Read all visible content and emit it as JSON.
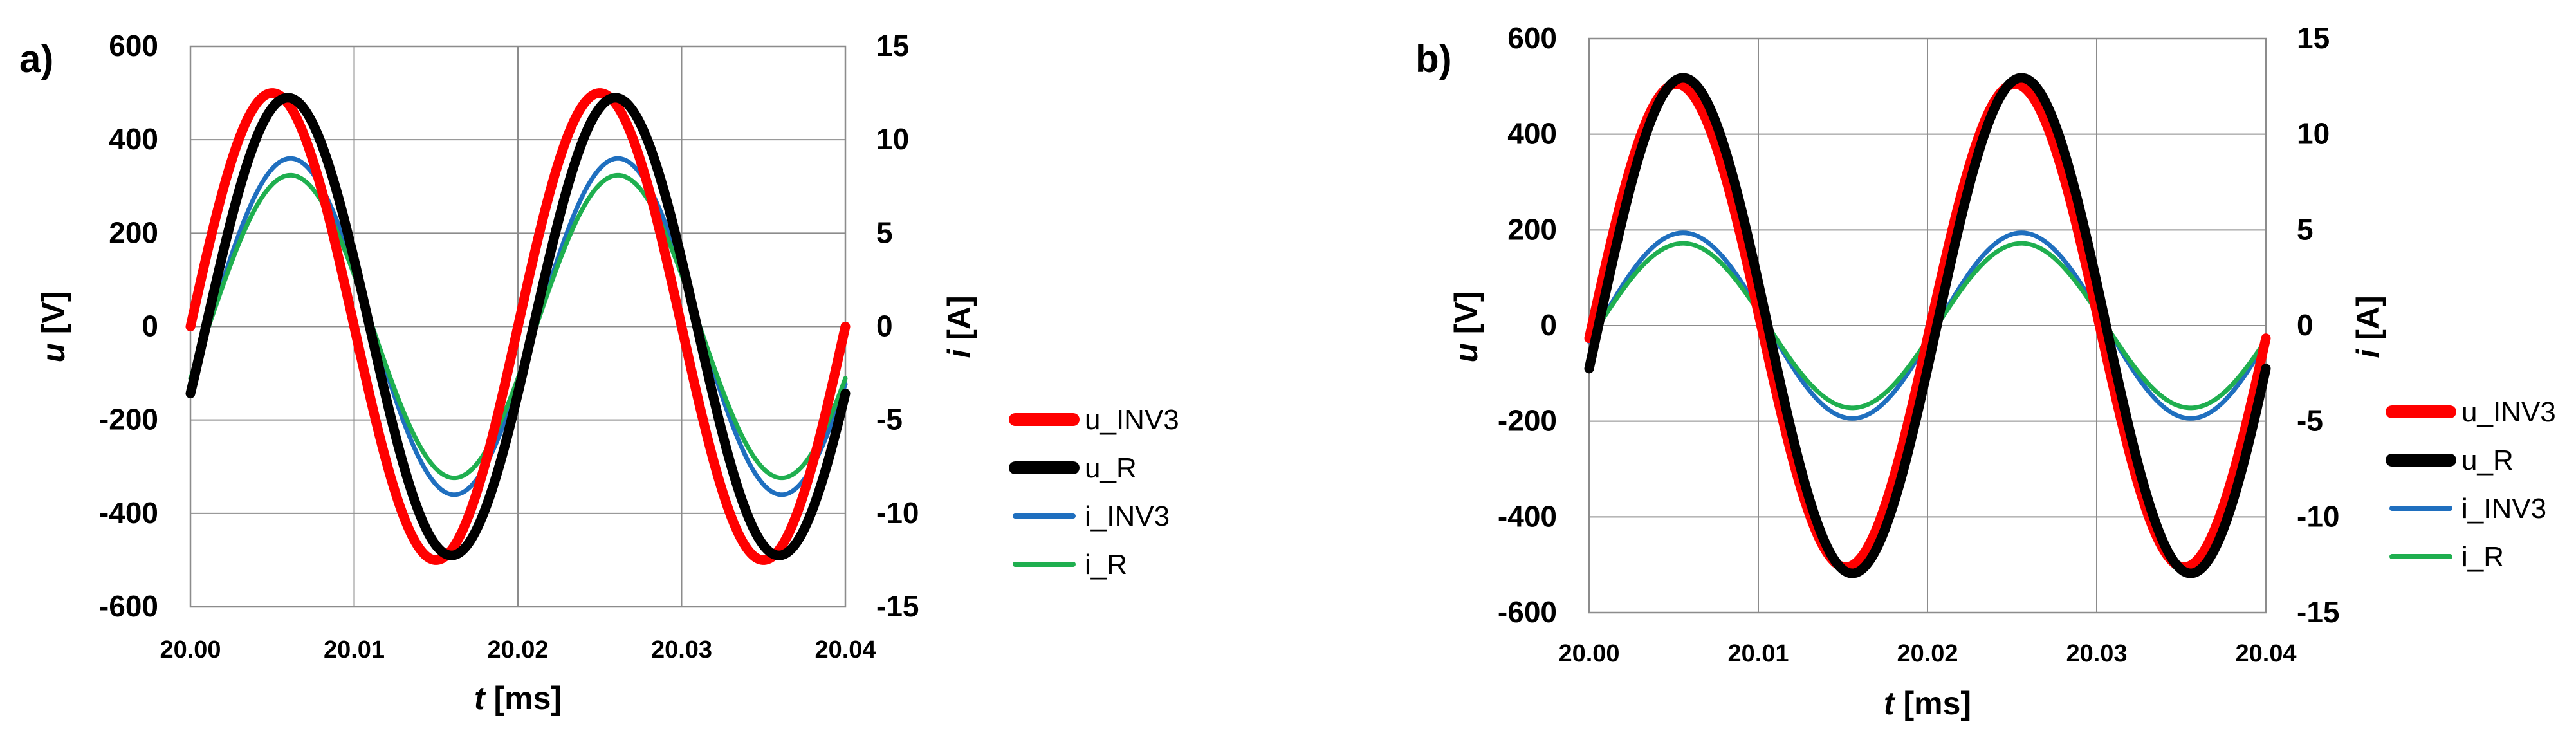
{
  "chart_data": [
    {
      "panel_label": "a)",
      "type": "line",
      "xlabel": "t [ms]",
      "ylabel_left": "u [V]",
      "ylabel_right": "i [A]",
      "xlim": [
        20.0,
        20.04
      ],
      "ylim_left": [
        -600,
        600
      ],
      "ylim_right": [
        -15,
        15
      ],
      "xticks": [
        "20.00",
        "20.01",
        "20.02",
        "20.03",
        "20.04"
      ],
      "yticks_left": [
        "600",
        "400",
        "200",
        "0",
        "-200",
        "-400",
        "-600"
      ],
      "yticks_right": [
        "15",
        "10",
        "5",
        "0",
        "-5",
        "-10",
        "-15"
      ],
      "grid": true,
      "legend_position": "right",
      "series": [
        {
          "name": "u_INV3",
          "axis": "left",
          "color": "#ff0000",
          "amplitude": 500,
          "frequency_hz": 50,
          "phase_deg": 0
        },
        {
          "name": "u_R",
          "axis": "left",
          "color": "#000000",
          "amplitude": 490,
          "frequency_hz": 50,
          "phase_deg": -17
        },
        {
          "name": "i_INV3",
          "axis": "right",
          "color": "#1f6fbf",
          "amplitude": 9.0,
          "frequency_hz": 50,
          "phase_deg": -20
        },
        {
          "name": "i_R",
          "axis": "right",
          "color": "#1faf4f",
          "amplitude": 8.1,
          "frequency_hz": 50,
          "phase_deg": -20
        }
      ]
    },
    {
      "panel_label": "b)",
      "type": "line",
      "xlabel": "t [ms]",
      "ylabel_left": "u [V]",
      "ylabel_right": "i [A]",
      "xlim": [
        20.0,
        20.04
      ],
      "ylim_left": [
        -600,
        600
      ],
      "ylim_right": [
        -15,
        15
      ],
      "xticks": [
        "20.00",
        "20.01",
        "20.02",
        "20.03",
        "20.04"
      ],
      "yticks_left": [
        "600",
        "400",
        "200",
        "0",
        "-200",
        "-400",
        "-600"
      ],
      "yticks_right": [
        "15",
        "10",
        "5",
        "0",
        "-5",
        "-10",
        "-15"
      ],
      "grid": true,
      "legend_position": "right",
      "series": [
        {
          "name": "u_INV3",
          "axis": "left",
          "color": "#ff0000",
          "amplitude": 505,
          "frequency_hz": 50,
          "phase_deg": -3
        },
        {
          "name": "u_R",
          "axis": "left",
          "color": "#000000",
          "amplitude": 518,
          "frequency_hz": 50,
          "phase_deg": -10
        },
        {
          "name": "i_INV3",
          "axis": "right",
          "color": "#1f6fbf",
          "amplitude": 4.85,
          "frequency_hz": 50,
          "phase_deg": -10
        },
        {
          "name": "i_R",
          "axis": "right",
          "color": "#1faf4f",
          "amplitude": 4.3,
          "frequency_hz": 50,
          "phase_deg": -10
        }
      ]
    }
  ]
}
